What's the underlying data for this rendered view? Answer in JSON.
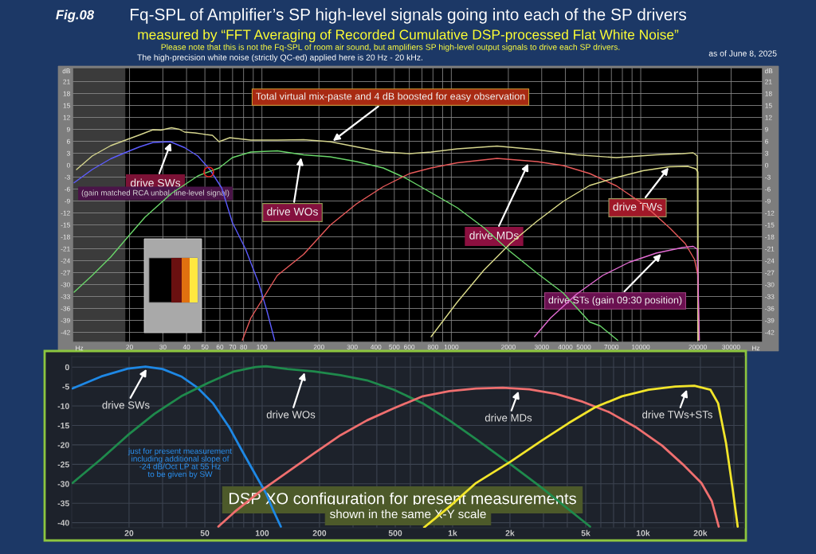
{
  "chart_data": [
    {
      "type": "line",
      "title": "Fq-SPL of Amplifier’s SP high-level signals going into each of the SP drivers",
      "subtitle": "measured by “FFT Averaging of Recorded Cumulative DSP-processed Flat White Noise”",
      "xlabel": "Hz",
      "ylabel": "dB",
      "y2label": "dB",
      "log": "x",
      "grid": true,
      "xlim": [
        10,
        44000
      ],
      "xticks": [
        20,
        30,
        40,
        50,
        60,
        70,
        80,
        {
          "value": 90,
          "label": null
        },
        100,
        200,
        300,
        400,
        500,
        600,
        {
          "value": 700,
          "label": null
        },
        800,
        {
          "value": 900,
          "label": null
        },
        1000,
        2000,
        3000,
        4000,
        5000,
        {
          "value": 6000,
          "label": null
        },
        7000,
        {
          "value": 8000,
          "label": null
        },
        {
          "value": 9000,
          "label": null
        },
        10000,
        20000,
        30000
      ],
      "ylim": [
        -44.5,
        24.5
      ],
      "yticks": [
        -42,
        -39,
        -36,
        -33,
        -30,
        -27,
        -24,
        -21,
        -18,
        -15,
        -12,
        -9,
        -6,
        -3,
        0,
        3,
        6,
        9,
        12,
        15,
        18,
        21
      ],
      "y2lim": [
        -44.5,
        24.5
      ],
      "y2ticks": [
        -42,
        -39,
        -36,
        -33,
        -30,
        -27,
        -24,
        -21,
        -18,
        -15,
        -12,
        -9,
        -6,
        -3,
        0,
        3,
        6,
        9,
        12,
        15,
        18,
        21
      ],
      "bands": [
        {
          "axis": "x",
          "from": 10,
          "to": 19,
          "color": "#3b3b3b"
        }
      ],
      "series": [
        {
          "color": "#d6d68e",
          "x": [
            10.5,
            12.7,
            15.9,
            19.3,
            22.6,
            26.6,
            29.3,
            33.3,
            36.7,
            39.1,
            44.4,
            50.6,
            54.8,
            59.4,
            67.6,
            76.8,
            87.4,
            120.6,
            166,
            229,
            316,
            437,
            603,
            782,
            1075,
            1743,
            2830,
            4587,
            7440,
            12060,
            16620,
            18920,
            19900,
            20040
          ],
          "values": [
            -1.1,
            2.3,
            4.9,
            6.4,
            7.6,
            8.9,
            8.8,
            9.4,
            9.0,
            8.3,
            8.1,
            7.7,
            7.5,
            5.9,
            6.9,
            6.6,
            6.3,
            6.3,
            6.4,
            5.9,
            4.6,
            3.3,
            2.9,
            3.3,
            4.1,
            4.8,
            3.9,
            2.6,
            1.9,
            2.6,
            2.9,
            3.1,
            2.3,
            -44
          ]
        },
        {
          "color": "#5c5cff",
          "x": [
            10.2,
            12.7,
            15.9,
            19.3,
            22.6,
            26.6,
            32.8,
            39.1,
            45.9,
            53.1,
            61.3,
            69.8,
            82,
            96.2,
            106,
            116.7
          ],
          "values": [
            -4.4,
            -1.1,
            1.6,
            3.3,
            4.6,
            5.7,
            5.9,
            4.4,
            2.3,
            -1.1,
            -5.7,
            -14.4,
            -21.1,
            -29.7,
            -36.4,
            -44
          ]
        },
        {
          "color": "#6ad66a",
          "x": [
            10.2,
            12.7,
            15.9,
            19.3,
            24.1,
            33.3,
            45.9,
            59.4,
            69.8,
            87.4,
            120.6,
            166,
            229,
            316,
            437,
            565,
            782,
            1075,
            1484,
            2045,
            2830,
            3895,
            5375,
            6115,
            7560
          ],
          "values": [
            -31.9,
            -27.7,
            -23.1,
            -18.4,
            -13.1,
            -7.1,
            -2.7,
            -0.7,
            1.9,
            3.3,
            3.6,
            2.6,
            2.1,
            0.9,
            -0.7,
            -3.1,
            -6.9,
            -10.7,
            -15.7,
            -21.7,
            -27.1,
            -32.1,
            -39.4,
            -40.4,
            -44
          ]
        },
        {
          "color": "#e85a5a",
          "x": [
            78.8,
            87.4,
            120.6,
            166,
            229,
            316,
            437,
            603,
            782,
            1075,
            1743,
            2830,
            3895,
            5375,
            7440,
            10270,
            14170,
            17180,
            19230,
            20040,
            20300
          ],
          "values": [
            -44,
            -38.4,
            -27.7,
            -22.4,
            -15.1,
            -9.7,
            -5.4,
            -2.1,
            -0.7,
            0.6,
            1.7,
            0.9,
            -0.1,
            -2.1,
            -5.2,
            -9.7,
            -15.7,
            -19.7,
            -23.7,
            -27.7,
            -44
          ]
        },
        {
          "color": "#dcdc8a",
          "x": [
            782,
            1075,
            1484,
            2045,
            2830,
            3895,
            5375,
            7440,
            10270,
            14170,
            17720,
            19500,
            20040,
            20100
          ],
          "values": [
            -43.1,
            -34.4,
            -26.4,
            -19.7,
            -14.1,
            -9.1,
            -5.1,
            -3.1,
            -1.4,
            -0.4,
            -0.3,
            -0.9,
            -1.7,
            -44
          ]
        },
        {
          "color": "#e46cd4",
          "x": [
            2750,
            3340,
            4587,
            6300,
            8690,
            12060,
            16620,
            18920,
            19900,
            20400
          ],
          "values": [
            -43.1,
            -38.4,
            -32.4,
            -27.7,
            -24.4,
            -22.1,
            -20.7,
            -20.4,
            -21.1,
            -44
          ]
        }
      ],
      "annotations": [
        "Fig.08",
        "Please note that this is not the Fq-SPL of room air sound, but amplifiers SP high-level output signals to drive each SP drivers.",
        "The high-precision white noise (strictly QC-ed) applied here is 20 Hz - 20 kHz.",
        "as of June 8, 2025",
        {
          "text": "Total virtual mix-paste and 4 dB boosted for easy observation",
          "x": 237,
          "y": 6.1
        },
        {
          "text": "drive SWs",
          "x": 33,
          "y": 5.6
        },
        "(gain matched RCA unbal. line-level signal)",
        {
          "text": "drive WOs",
          "x": 161,
          "y": 1.9
        },
        {
          "text": "drive MDs",
          "x": 2547,
          "y": 0.4
        },
        {
          "text": "drive TWs",
          "x": 14030,
          "y": -0.6
        },
        {
          "text": "drive STs (gain 09:30 position)",
          "x": 12830,
          "y": -22.3
        }
      ]
    },
    {
      "type": "line",
      "title": "DSP XO configuration for present measurements",
      "subtitle": "shown in the same X-Y scale",
      "log": "x",
      "grid": true,
      "xlim": [
        10,
        34000
      ],
      "xticks": [
        20,
        {
          "value": 30,
          "label": null
        },
        {
          "value": 40,
          "label": null
        },
        50,
        {
          "value": 60,
          "label": null
        },
        {
          "value": 70,
          "label": null
        },
        {
          "value": 80,
          "label": null
        },
        {
          "value": 90,
          "label": null
        },
        100,
        200,
        {
          "value": 300,
          "label": null
        },
        {
          "value": 400,
          "label": null
        },
        500,
        {
          "value": 600,
          "label": null
        },
        {
          "value": 700,
          "label": null
        },
        {
          "value": 800,
          "label": null
        },
        {
          "value": 900,
          "label": null
        },
        {
          "value": 1000,
          "label": "1k"
        },
        {
          "value": 2000,
          "label": "2k"
        },
        {
          "value": 3000,
          "label": null
        },
        {
          "value": 4000,
          "label": null
        },
        {
          "value": 5000,
          "label": "5k"
        },
        {
          "value": 6000,
          "label": null
        },
        {
          "value": 7000,
          "label": null
        },
        {
          "value": 8000,
          "label": null
        },
        {
          "value": 9000,
          "label": null
        },
        {
          "value": 10000,
          "label": "10k"
        },
        {
          "value": 20000,
          "label": "20k"
        },
        {
          "value": 30000,
          "label": null
        }
      ],
      "ylim": [
        -41.3,
        2.7
      ],
      "yticks": [
        -40,
        -35,
        -30,
        -25,
        -20,
        -15,
        -10,
        -5,
        0
      ],
      "series": [
        {
          "color": "#1e88e5",
          "x": [
            10.1,
            14.3,
            19.7,
            24.4,
            30.0,
            37.6,
            45.5,
            55.2,
            67,
            78.6,
            92.3,
            104.9,
            115.5,
            125.3
          ],
          "values": [
            -5.5,
            -2.4,
            -0.4,
            0.1,
            -0.5,
            -2.4,
            -5.2,
            -9.3,
            -15.4,
            -21.6,
            -27.7,
            -32.5,
            -37.3,
            -41
          ]
        },
        {
          "color": "#1f8a4c",
          "x": [
            10.1,
            14.3,
            19.7,
            27.2,
            37.6,
            51.8,
            71.4,
            92.3,
            104.9,
            135.7,
            187,
            258,
            355,
            490,
            697,
            962,
            1327,
            2017,
            2952,
            4067,
            5267
          ],
          "values": [
            -29.8,
            -23.6,
            -17.5,
            -12.0,
            -7.5,
            -4.1,
            -1.1,
            0,
            0.2,
            -0.5,
            -1.1,
            -2.1,
            -3.4,
            -5.8,
            -9.3,
            -13.7,
            -18.5,
            -25,
            -31.1,
            -36.6,
            -41
          ]
        },
        {
          "color": "#ef6f6f",
          "x": [
            58.9,
            71.4,
            98.5,
            135.7,
            187,
            258,
            355,
            490,
            697,
            962,
            1327,
            1833,
            2530,
            3490,
            4816,
            6650,
            9130,
            12600,
            16170,
            20240,
            22980,
            24970
          ],
          "values": [
            -41,
            -37.3,
            -31.8,
            -27.0,
            -22.2,
            -17.5,
            -13.7,
            -10.6,
            -7.5,
            -6.2,
            -5.5,
            -5.3,
            -5.7,
            -6.9,
            -8.9,
            -11.6,
            -15.4,
            -20.2,
            -25,
            -29.8,
            -34.5,
            -41
          ]
        },
        {
          "color": "#f2e52a",
          "x": [
            709,
            962,
            1327,
            2017,
            2952,
            4067,
            5612,
            7750,
            10690,
            14760,
            18600,
            22560,
            24780,
            27260,
            29490,
            31400
          ],
          "values": [
            -41.2,
            -35.9,
            -29.8,
            -24.3,
            -18.8,
            -14.4,
            -10.3,
            -7.5,
            -5.8,
            -5.0,
            -4.8,
            -5.8,
            -9.3,
            -19.5,
            -31.1,
            -41
          ]
        }
      ],
      "annotations": [
        {
          "text": "drive SWs",
          "x": 24.7,
          "y": -0.5
        },
        {
          "text": "drive WOs",
          "x": 167,
          "y": -1.4
        },
        {
          "text": "drive MDs",
          "x": 2220,
          "y": -6.2
        },
        {
          "text": "drive TWs+STs",
          "x": 16990,
          "y": -5.8
        },
        "just for present measurement\nincluding additional slope of\n-24 dB/Oct LP at 55 Hz\nto be given by SW"
      ]
    }
  ]
}
